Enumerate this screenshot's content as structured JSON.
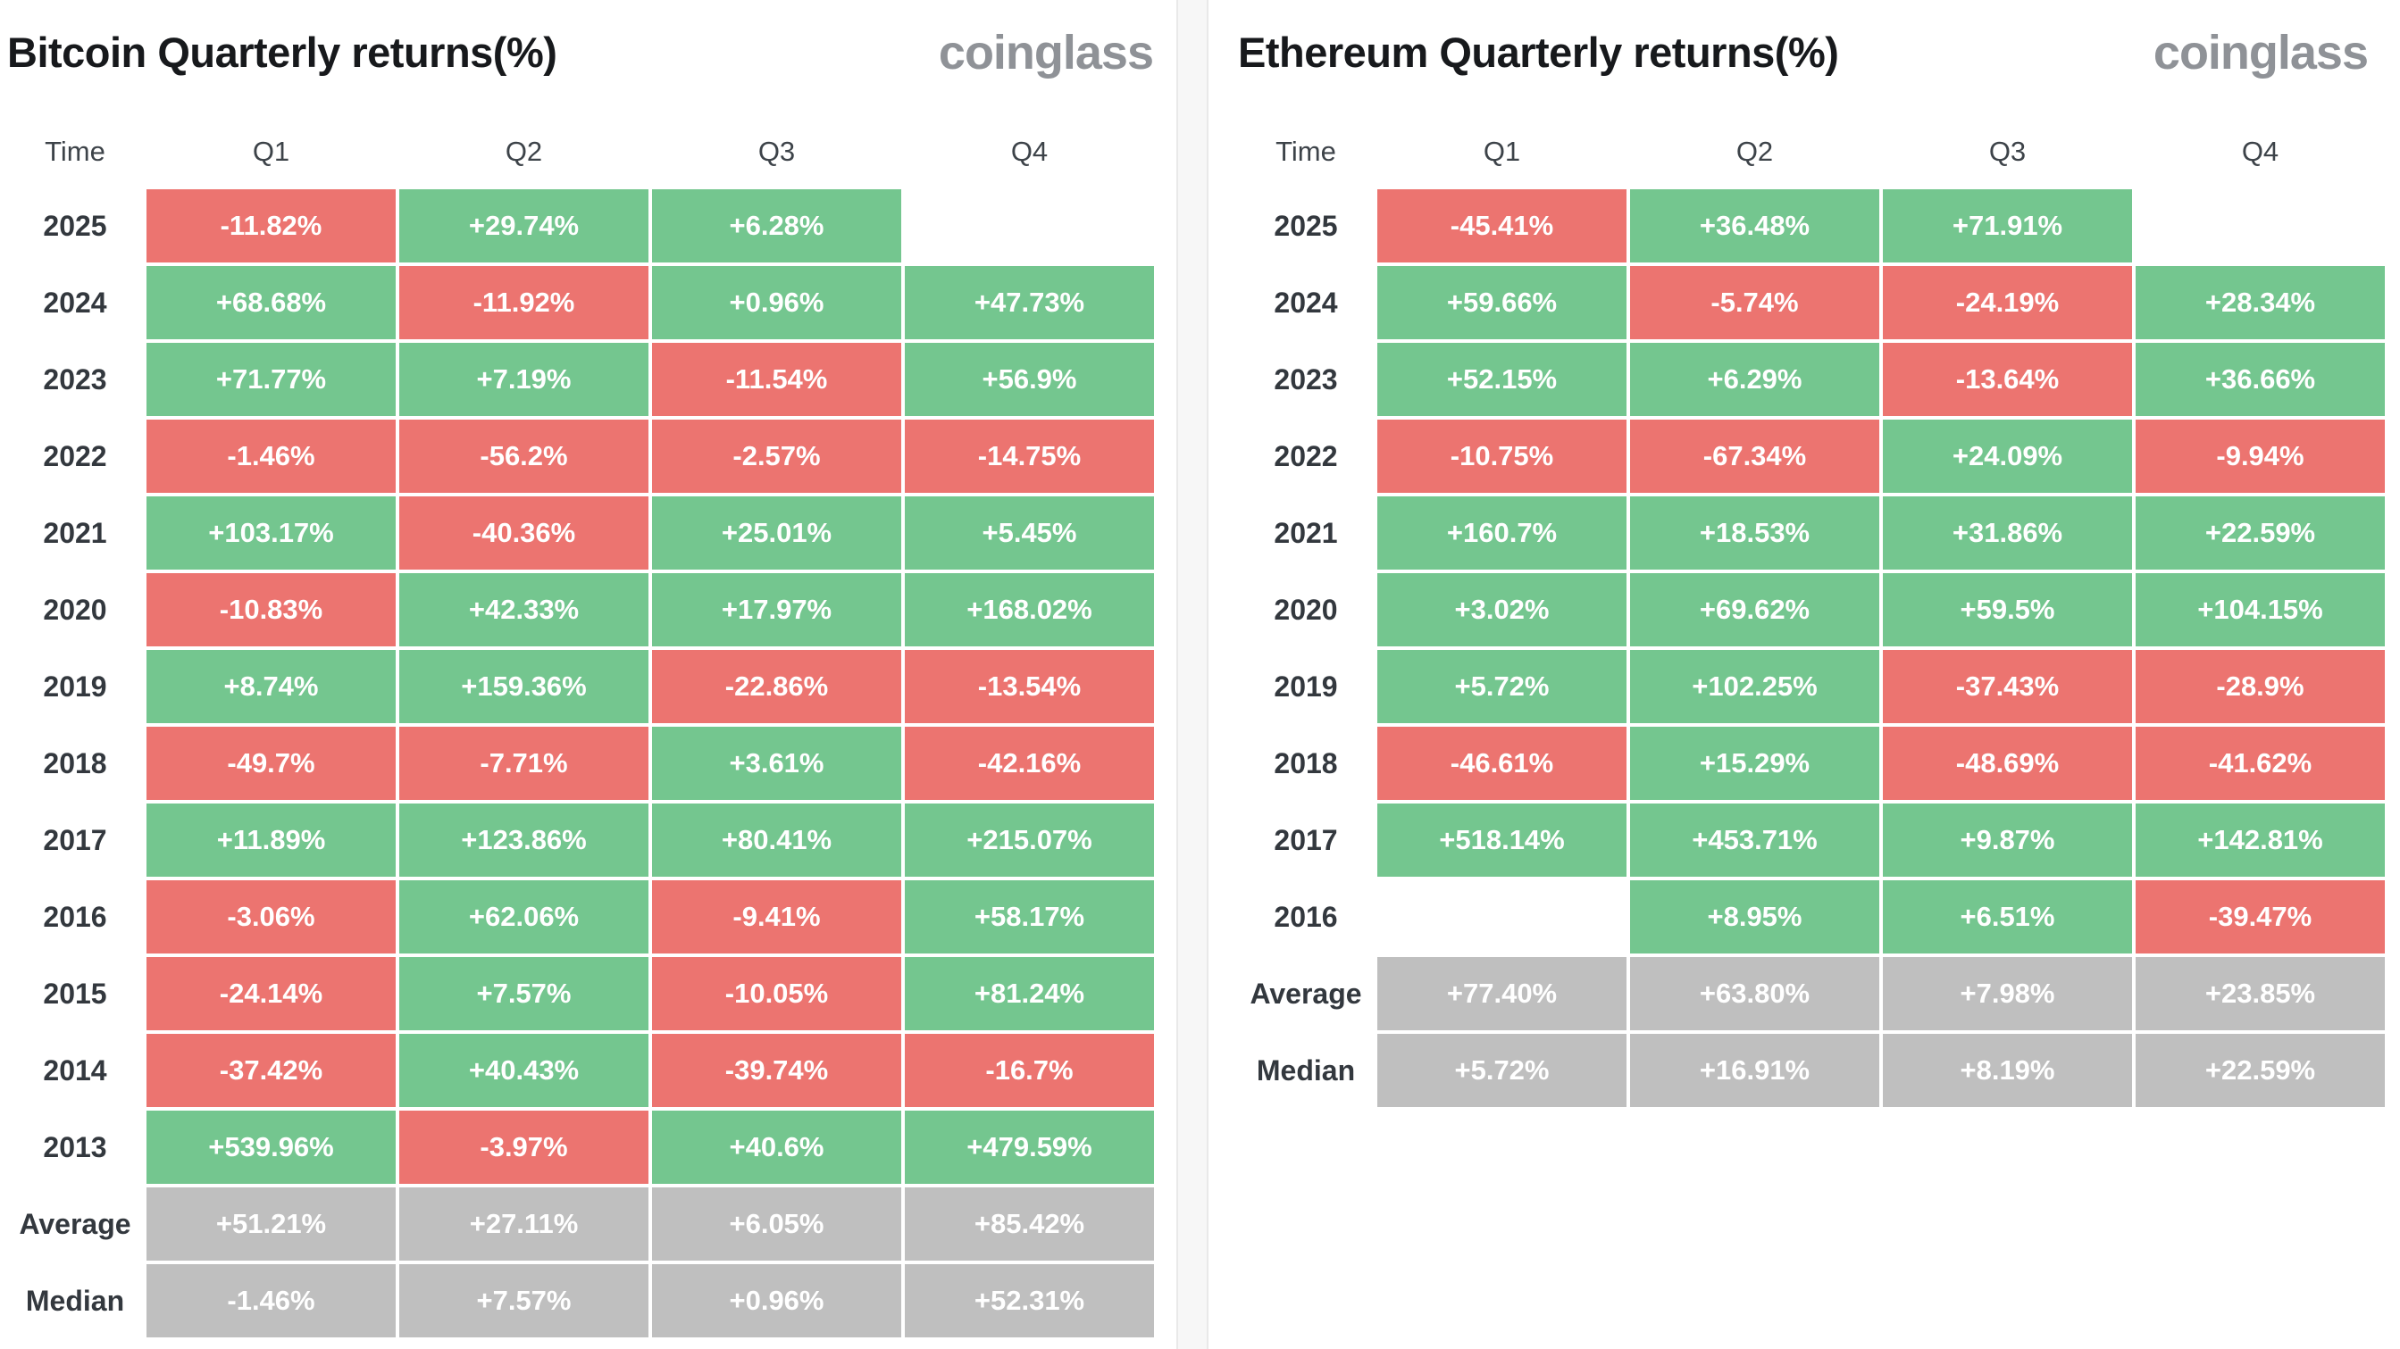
{
  "colors": {
    "green": "#74c68f",
    "red": "#ec7470",
    "gray": "#bfbfbf",
    "gutter_bg": "#f7f7f7",
    "gutter_border": "#e9e9e9",
    "title_text": "#17191c",
    "label_text": "#33383e",
    "header_text": "#3d4349",
    "brand_text": "#8f9297"
  },
  "chart_data": [
    {
      "type": "table",
      "title": "Bitcoin Quarterly returns(%)",
      "brand": "coinglass",
      "columns": [
        "Time",
        "Q1",
        "Q2",
        "Q3",
        "Q4"
      ],
      "rows": [
        {
          "label": "2025",
          "values": [
            "-11.82%",
            "+29.74%",
            "+6.28%",
            ""
          ],
          "colors": [
            "red",
            "green",
            "green",
            "none"
          ]
        },
        {
          "label": "2024",
          "values": [
            "+68.68%",
            "-11.92%",
            "+0.96%",
            "+47.73%"
          ],
          "colors": [
            "green",
            "red",
            "green",
            "green"
          ]
        },
        {
          "label": "2023",
          "values": [
            "+71.77%",
            "+7.19%",
            "-11.54%",
            "+56.9%"
          ],
          "colors": [
            "green",
            "green",
            "red",
            "green"
          ]
        },
        {
          "label": "2022",
          "values": [
            "-1.46%",
            "-56.2%",
            "-2.57%",
            "-14.75%"
          ],
          "colors": [
            "red",
            "red",
            "red",
            "red"
          ]
        },
        {
          "label": "2021",
          "values": [
            "+103.17%",
            "-40.36%",
            "+25.01%",
            "+5.45%"
          ],
          "colors": [
            "green",
            "red",
            "green",
            "green"
          ]
        },
        {
          "label": "2020",
          "values": [
            "-10.83%",
            "+42.33%",
            "+17.97%",
            "+168.02%"
          ],
          "colors": [
            "red",
            "green",
            "green",
            "green"
          ]
        },
        {
          "label": "2019",
          "values": [
            "+8.74%",
            "+159.36%",
            "-22.86%",
            "-13.54%"
          ],
          "colors": [
            "green",
            "green",
            "red",
            "red"
          ]
        },
        {
          "label": "2018",
          "values": [
            "-49.7%",
            "-7.71%",
            "+3.61%",
            "-42.16%"
          ],
          "colors": [
            "red",
            "red",
            "green",
            "red"
          ]
        },
        {
          "label": "2017",
          "values": [
            "+11.89%",
            "+123.86%",
            "+80.41%",
            "+215.07%"
          ],
          "colors": [
            "green",
            "green",
            "green",
            "green"
          ]
        },
        {
          "label": "2016",
          "values": [
            "-3.06%",
            "+62.06%",
            "-9.41%",
            "+58.17%"
          ],
          "colors": [
            "red",
            "green",
            "red",
            "green"
          ]
        },
        {
          "label": "2015",
          "values": [
            "-24.14%",
            "+7.57%",
            "-10.05%",
            "+81.24%"
          ],
          "colors": [
            "red",
            "green",
            "red",
            "green"
          ]
        },
        {
          "label": "2014",
          "values": [
            "-37.42%",
            "+40.43%",
            "-39.74%",
            "-16.7%"
          ],
          "colors": [
            "red",
            "green",
            "red",
            "red"
          ]
        },
        {
          "label": "2013",
          "values": [
            "+539.96%",
            "-3.97%",
            "+40.6%",
            "+479.59%"
          ],
          "colors": [
            "green",
            "red",
            "green",
            "green"
          ]
        },
        {
          "label": "Average",
          "values": [
            "+51.21%",
            "+27.11%",
            "+6.05%",
            "+85.42%"
          ],
          "colors": [
            "gray",
            "gray",
            "gray",
            "gray"
          ]
        },
        {
          "label": "Median",
          "values": [
            "-1.46%",
            "+7.57%",
            "+0.96%",
            "+52.31%"
          ],
          "colors": [
            "gray",
            "gray",
            "gray",
            "gray"
          ]
        }
      ]
    },
    {
      "type": "table",
      "title": "Ethereum Quarterly returns(%)",
      "brand": "coinglass",
      "columns": [
        "Time",
        "Q1",
        "Q2",
        "Q3",
        "Q4"
      ],
      "rows": [
        {
          "label": "2025",
          "values": [
            "-45.41%",
            "+36.48%",
            "+71.91%",
            ""
          ],
          "colors": [
            "red",
            "green",
            "green",
            "none"
          ]
        },
        {
          "label": "2024",
          "values": [
            "+59.66%",
            "-5.74%",
            "-24.19%",
            "+28.34%"
          ],
          "colors": [
            "green",
            "red",
            "red",
            "green"
          ]
        },
        {
          "label": "2023",
          "values": [
            "+52.15%",
            "+6.29%",
            "-13.64%",
            "+36.66%"
          ],
          "colors": [
            "green",
            "green",
            "red",
            "green"
          ]
        },
        {
          "label": "2022",
          "values": [
            "-10.75%",
            "-67.34%",
            "+24.09%",
            "-9.94%"
          ],
          "colors": [
            "red",
            "red",
            "green",
            "red"
          ]
        },
        {
          "label": "2021",
          "values": [
            "+160.7%",
            "+18.53%",
            "+31.86%",
            "+22.59%"
          ],
          "colors": [
            "green",
            "green",
            "green",
            "green"
          ]
        },
        {
          "label": "2020",
          "values": [
            "+3.02%",
            "+69.62%",
            "+59.5%",
            "+104.15%"
          ],
          "colors": [
            "green",
            "green",
            "green",
            "green"
          ]
        },
        {
          "label": "2019",
          "values": [
            "+5.72%",
            "+102.25%",
            "-37.43%",
            "-28.9%"
          ],
          "colors": [
            "green",
            "green",
            "red",
            "red"
          ]
        },
        {
          "label": "2018",
          "values": [
            "-46.61%",
            "+15.29%",
            "-48.69%",
            "-41.62%"
          ],
          "colors": [
            "red",
            "green",
            "red",
            "red"
          ]
        },
        {
          "label": "2017",
          "values": [
            "+518.14%",
            "+453.71%",
            "+9.87%",
            "+142.81%"
          ],
          "colors": [
            "green",
            "green",
            "green",
            "green"
          ]
        },
        {
          "label": "2016",
          "values": [
            "",
            "+8.95%",
            "+6.51%",
            "-39.47%"
          ],
          "colors": [
            "none",
            "green",
            "green",
            "red"
          ]
        },
        {
          "label": "Average",
          "values": [
            "+77.40%",
            "+63.80%",
            "+7.98%",
            "+23.85%"
          ],
          "colors": [
            "gray",
            "gray",
            "gray",
            "gray"
          ]
        },
        {
          "label": "Median",
          "values": [
            "+5.72%",
            "+16.91%",
            "+8.19%",
            "+22.59%"
          ],
          "colors": [
            "gray",
            "gray",
            "gray",
            "gray"
          ]
        }
      ]
    }
  ]
}
